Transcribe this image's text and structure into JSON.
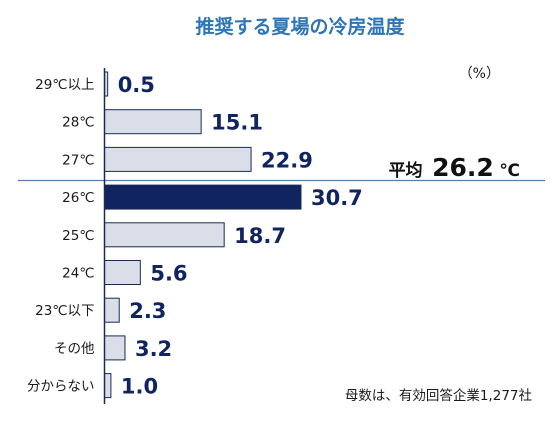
{
  "chart_data": {
    "type": "bar",
    "orientation": "horizontal",
    "title": "推奨する夏場の冷房温度",
    "unit_label": "（%）",
    "categories": [
      "29℃以上",
      "28℃",
      "27℃",
      "26℃",
      "25℃",
      "24℃",
      "23℃以下",
      "その他",
      "分からない"
    ],
    "values": [
      0.5,
      15.1,
      22.9,
      30.7,
      18.7,
      5.6,
      2.3,
      3.2,
      1.0
    ],
    "value_labels": [
      "0.5",
      "15.1",
      "22.9",
      "30.7",
      "18.7",
      "5.6",
      "2.3",
      "3.2",
      "1.0"
    ],
    "highlight_index": 3,
    "average": {
      "prefix": "平均",
      "value": "26.2",
      "unit": "℃"
    },
    "footnote": "母数は、有効回答企業1,277社",
    "colors": {
      "title": "#2e75b6",
      "bar_fill": "#d9dee8",
      "bar_stroke": "#1a2b52",
      "highlight_fill": "#0f2461",
      "value_text": "#0f2461",
      "axis": "#1a2b52",
      "divider": "#5b7fa8",
      "text": "#1a1a1a"
    }
  }
}
